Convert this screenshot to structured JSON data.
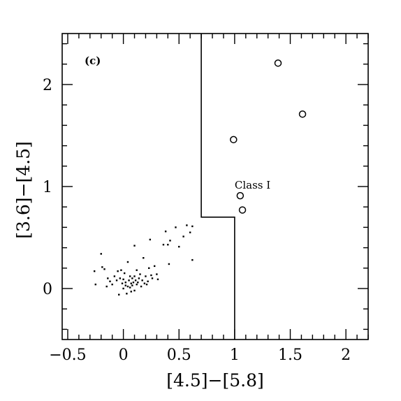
{
  "chart_data": {
    "type": "scatter",
    "panel_label": "(c)",
    "xlabel": "[4.5]−[5.8]",
    "ylabel": "[3.6]−[4.5]",
    "xlim": [
      -0.55,
      2.2
    ],
    "ylim": [
      -0.5,
      2.5
    ],
    "x_ticks": [
      -0.5,
      0,
      0.5,
      1,
      1.5,
      2
    ],
    "x_tick_labels": [
      "−0.5",
      "0",
      "0.5",
      "1",
      "1.5",
      "2"
    ],
    "x_minor_step": 0.1,
    "y_ticks": [
      0,
      1,
      2
    ],
    "y_tick_labels": [
      "0",
      "1",
      "2"
    ],
    "y_minor_step": 0.2,
    "grid": false,
    "annotations": [
      {
        "text": "Class I",
        "x": 1.0,
        "y": 0.98
      }
    ],
    "class_boundary": [
      [
        0.7,
        2.5
      ],
      [
        0.7,
        0.7
      ],
      [
        1.0,
        0.7
      ],
      [
        1.0,
        -0.5
      ]
    ],
    "series": [
      {
        "marker": "dot",
        "points": [
          [
            -0.26,
            0.17
          ],
          [
            -0.25,
            0.04
          ],
          [
            -0.2,
            0.34
          ],
          [
            -0.19,
            0.21
          ],
          [
            -0.17,
            0.19
          ],
          [
            -0.15,
            0.02
          ],
          [
            -0.14,
            0.1
          ],
          [
            -0.12,
            0.07
          ],
          [
            -0.1,
            0.04
          ],
          [
            -0.08,
            0.12
          ],
          [
            -0.06,
            0.08
          ],
          [
            -0.05,
            0.17
          ],
          [
            -0.04,
            -0.06
          ],
          [
            -0.03,
            0.1
          ],
          [
            -0.02,
            0.18
          ],
          [
            -0.01,
            0.05
          ],
          [
            0.0,
            0.0
          ],
          [
            0.0,
            0.09
          ],
          [
            0.01,
            0.15
          ],
          [
            0.02,
            0.03
          ],
          [
            0.02,
            0.06
          ],
          [
            0.03,
            -0.05
          ],
          [
            0.04,
            0.02
          ],
          [
            0.04,
            0.26
          ],
          [
            0.05,
            0.08
          ],
          [
            0.06,
            0.01
          ],
          [
            0.06,
            0.12
          ],
          [
            0.07,
            -0.03
          ],
          [
            0.07,
            0.05
          ],
          [
            0.08,
            0.03
          ],
          [
            0.08,
            0.1
          ],
          [
            0.09,
            0.06
          ],
          [
            0.1,
            0.42
          ],
          [
            0.1,
            -0.02
          ],
          [
            0.1,
            0.12
          ],
          [
            0.11,
            0.08
          ],
          [
            0.12,
            0.18
          ],
          [
            0.12,
            0.04
          ],
          [
            0.13,
            0.06
          ],
          [
            0.14,
            0.1
          ],
          [
            0.15,
            0.14
          ],
          [
            0.16,
            0.02
          ],
          [
            0.17,
            0.08
          ],
          [
            0.18,
            0.3
          ],
          [
            0.19,
            0.05
          ],
          [
            0.2,
            0.12
          ],
          [
            0.21,
            0.04
          ],
          [
            0.22,
            0.07
          ],
          [
            0.23,
            0.2
          ],
          [
            0.24,
            0.48
          ],
          [
            0.25,
            0.13
          ],
          [
            0.26,
            0.1
          ],
          [
            0.28,
            0.22
          ],
          [
            0.3,
            0.14
          ],
          [
            0.31,
            0.09
          ],
          [
            0.36,
            0.43
          ],
          [
            0.38,
            0.56
          ],
          [
            0.4,
            0.43
          ],
          [
            0.41,
            0.24
          ],
          [
            0.42,
            0.47
          ],
          [
            0.47,
            0.6
          ],
          [
            0.5,
            0.41
          ],
          [
            0.54,
            0.51
          ],
          [
            0.57,
            0.62
          ],
          [
            0.6,
            0.55
          ],
          [
            0.62,
            0.61
          ],
          [
            0.62,
            0.28
          ]
        ]
      },
      {
        "marker": "open-circle",
        "points": [
          [
            0.99,
            1.46
          ],
          [
            1.05,
            0.91
          ],
          [
            1.07,
            0.77
          ],
          [
            1.39,
            2.21
          ],
          [
            1.61,
            1.71
          ]
        ]
      }
    ]
  }
}
